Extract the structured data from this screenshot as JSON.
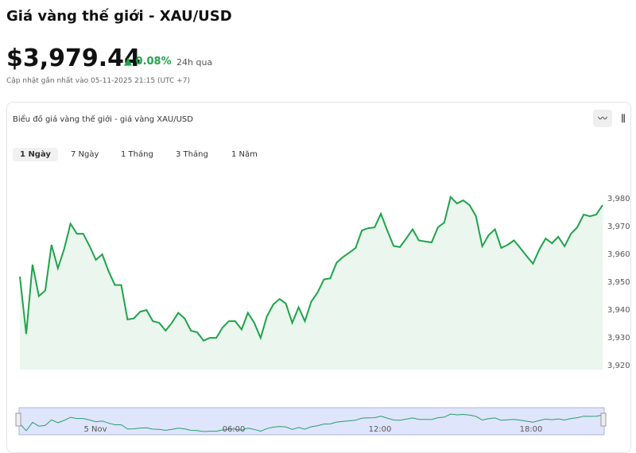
{
  "header": {
    "title": "Giá vàng thế giới - XAU/USD",
    "price": "$3,979.44",
    "change": "0.08%",
    "period": "24h qua",
    "updated": "Cập nhật gần nhất vào 05-11-2025 21:15 (UTC +7)"
  },
  "card": {
    "title": "Biểu đồ giá vàng thế giới - giá vàng XAU/USD",
    "tabs": [
      "1 Ngày",
      "7 Ngày",
      "1 Tháng",
      "3 Tháng",
      "1 Năm"
    ],
    "navigator_labels": [
      "5 Nov",
      "06:00",
      "12:00",
      "18:00"
    ]
  },
  "chart_data": {
    "type": "area",
    "color": "#1fa34a",
    "values": [
      3952,
      3931.4,
      3956.3,
      3945,
      3947,
      3963.4,
      3955,
      3962,
      3971,
      3967.4,
      3967.4,
      3963,
      3958,
      3960,
      3954,
      3949,
      3949,
      3936.6,
      3937,
      3939.4,
      3940,
      3936,
      3935.4,
      3932.6,
      3935.4,
      3939,
      3937,
      3932.6,
      3932,
      3929,
      3930,
      3930,
      3933.7,
      3936,
      3936,
      3933,
      3939,
      3935.4,
      3930,
      3937.7,
      3942,
      3944,
      3942.3,
      3935.4,
      3941,
      3936,
      3943,
      3946.3,
      3951,
      3951.4,
      3957,
      3959,
      3960.6,
      3962.3,
      3968.6,
      3969.4,
      3969.7,
      3974.6,
      3968.6,
      3963,
      3962.6,
      3965.7,
      3969,
      3965,
      3964.6,
      3964.3,
      3969.7,
      3971.4,
      3980.6,
      3978.3,
      3979.4,
      3977.7,
      3973.7,
      3962.9,
      3966.9,
      3969,
      3962.3,
      3963.4,
      3965,
      3962.3,
      3959.4,
      3956.6,
      3961.7,
      3965.7,
      3964,
      3966.3,
      3962.9,
      3967.4,
      3969.7,
      3974.3,
      3973.7,
      3974.3,
      3977.7
    ],
    "ylim": [
      3918.6,
      3990
    ],
    "yticks": [
      {
        "value": 3920,
        "label": "3,920"
      },
      {
        "value": 3930,
        "label": "3,930"
      },
      {
        "value": 3940,
        "label": "3,940"
      },
      {
        "value": 3950,
        "label": "3,950"
      },
      {
        "value": 3960,
        "label": "3,960"
      },
      {
        "value": 3970,
        "label": "3,970"
      },
      {
        "value": 3980,
        "label": "3,980"
      }
    ]
  }
}
